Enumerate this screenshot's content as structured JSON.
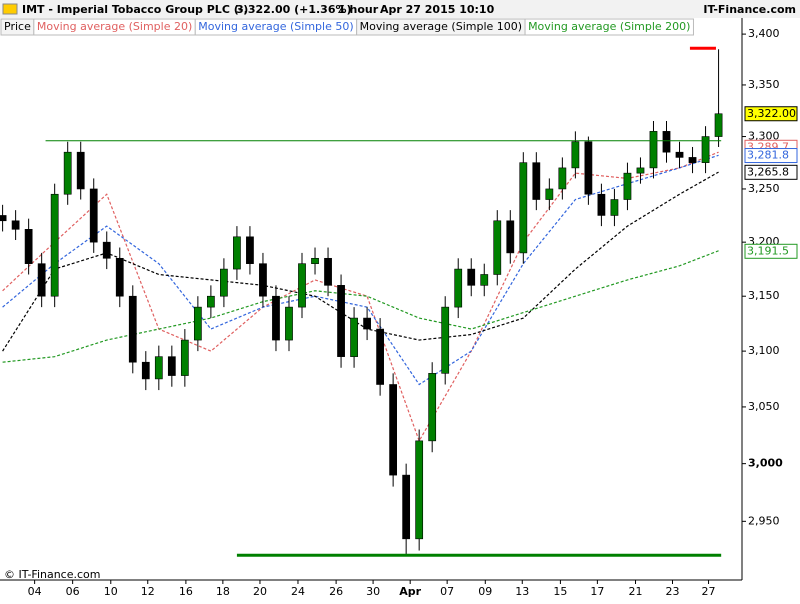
{
  "chart_data": {
    "type": "candlestick",
    "header": {
      "symbol": "IMT - Imperial Tobacco Group PLC (-)",
      "quote": "3,322.00 (+1.36%)",
      "period": "1 hour",
      "date": "Apr 27 2015 10:10",
      "site": "IT-Finance.com"
    },
    "watermark": "© IT-Finance.com",
    "price_tab": "Price",
    "log_scale": true,
    "ylim": [
      2900,
      3414
    ],
    "yticks": [
      {
        "value": 2950,
        "label": "2,950"
      },
      {
        "value": 3000,
        "label": "3,000"
      },
      {
        "value": 3050,
        "label": "3,050"
      },
      {
        "value": 3100,
        "label": "3,100"
      },
      {
        "value": 3150,
        "label": "3,150"
      },
      {
        "value": 3200,
        "label": "3,200"
      },
      {
        "value": 3250,
        "label": "3,250"
      },
      {
        "value": 3300,
        "label": "3,300"
      },
      {
        "value": 3350,
        "label": "3,350"
      },
      {
        "value": 3400,
        "label": "3,400"
      }
    ],
    "xlim": [
      -0.2,
      56.8
    ],
    "xticks": [
      {
        "value": 2.46,
        "label": "04"
      },
      {
        "value": 5.38,
        "label": "06"
      },
      {
        "value": 8.31,
        "label": "10"
      },
      {
        "value": 11.15,
        "label": "12"
      },
      {
        "value": 14.08,
        "label": "16"
      },
      {
        "value": 16.92,
        "label": "18"
      },
      {
        "value": 19.77,
        "label": "20"
      },
      {
        "value": 22.69,
        "label": "24"
      },
      {
        "value": 25.62,
        "label": "26"
      },
      {
        "value": 28.46,
        "label": "30"
      },
      {
        "value": 31.31,
        "label": "Apr"
      },
      {
        "value": 34.15,
        "label": "07"
      },
      {
        "value": 37.08,
        "label": "09"
      },
      {
        "value": 39.92,
        "label": "13"
      },
      {
        "value": 42.85,
        "label": "15"
      },
      {
        "value": 45.69,
        "label": "17"
      },
      {
        "value": 48.62,
        "label": "21"
      },
      {
        "value": 51.46,
        "label": "23"
      },
      {
        "value": 54.23,
        "label": "27"
      }
    ],
    "up_color": "#008000",
    "down_color": "#000000",
    "open": [
      3225,
      3220,
      3212,
      3180,
      3150,
      3245,
      3285,
      3250,
      3200,
      3185,
      3150,
      3090,
      3075,
      3095,
      3078,
      3110,
      3140,
      3150,
      3175,
      3205,
      3180,
      3150,
      3110,
      3140,
      3180,
      3185,
      3160,
      3095,
      3130,
      3120,
      3070,
      2990,
      2935,
      3020,
      3080,
      3140,
      3175,
      3160,
      3170,
      3220,
      3190,
      3275,
      3240,
      3250,
      3270,
      3295,
      3245,
      3225,
      3240,
      3265,
      3270,
      3305,
      3285,
      3280,
      3275,
      3300
    ],
    "high": [
      3235,
      3230,
      3222,
      3190,
      3255,
      3295,
      3295,
      3260,
      3210,
      3195,
      3160,
      3100,
      3105,
      3105,
      3120,
      3150,
      3160,
      3185,
      3215,
      3215,
      3190,
      3160,
      3150,
      3190,
      3195,
      3195,
      3170,
      3140,
      3140,
      3130,
      3080,
      3000,
      3030,
      3090,
      3150,
      3185,
      3185,
      3180,
      3230,
      3230,
      3285,
      3285,
      3260,
      3280,
      3305,
      3300,
      3255,
      3250,
      3275,
      3280,
      3315,
      3315,
      3295,
      3290,
      3310,
      3385
    ],
    "low": [
      3210,
      3202,
      3170,
      3140,
      3140,
      3235,
      3240,
      3190,
      3175,
      3140,
      3080,
      3065,
      3065,
      3068,
      3068,
      3100,
      3130,
      3140,
      3165,
      3170,
      3140,
      3100,
      3100,
      3130,
      3170,
      3150,
      3085,
      3085,
      3110,
      3060,
      2980,
      2920,
      2925,
      3010,
      3070,
      3130,
      3150,
      3150,
      3160,
      3180,
      3180,
      3230,
      3230,
      3240,
      3260,
      3235,
      3215,
      3215,
      3230,
      3255,
      3260,
      3275,
      3270,
      3265,
      3265,
      3290
    ],
    "close": [
      3220,
      3212,
      3180,
      3150,
      3245,
      3285,
      3250,
      3200,
      3185,
      3150,
      3090,
      3075,
      3095,
      3078,
      3110,
      3140,
      3150,
      3175,
      3205,
      3180,
      3150,
      3110,
      3140,
      3180,
      3185,
      3160,
      3095,
      3130,
      3120,
      3070,
      2990,
      2935,
      3020,
      3080,
      3140,
      3175,
      3160,
      3170,
      3220,
      3190,
      3275,
      3240,
      3250,
      3270,
      3295,
      3245,
      3225,
      3240,
      3265,
      3270,
      3305,
      3285,
      3280,
      3275,
      3300,
      3322
    ],
    "series": [
      {
        "name": "Moving average (Simple 20)",
        "color": "#e06060",
        "x": [
          0,
          4,
          8,
          12,
          16,
          20,
          24,
          28,
          32,
          36,
          40,
          44,
          48,
          52,
          55
        ],
        "values": [
          3155,
          3200,
          3245,
          3120,
          3100,
          3140,
          3165,
          3150,
          3020,
          3100,
          3200,
          3265,
          3260,
          3270,
          3285
        ]
      },
      {
        "name": "Moving average (Simple 50)",
        "color": "#3366dd",
        "x": [
          0,
          4,
          8,
          12,
          16,
          20,
          24,
          28,
          32,
          36,
          40,
          44,
          48,
          52,
          55
        ],
        "values": [
          3140,
          3180,
          3215,
          3180,
          3120,
          3140,
          3150,
          3140,
          3070,
          3100,
          3180,
          3240,
          3255,
          3270,
          3282
        ]
      },
      {
        "name": "Moving average (Simple 100)",
        "color": "#000000",
        "x": [
          0,
          4,
          8,
          12,
          16,
          20,
          24,
          28,
          32,
          36,
          40,
          44,
          48,
          52,
          55
        ],
        "values": [
          3100,
          3175,
          3190,
          3170,
          3165,
          3160,
          3150,
          3120,
          3110,
          3115,
          3130,
          3175,
          3215,
          3245,
          3266
        ]
      },
      {
        "name": "Moving average (Simple 200)",
        "color": "#229922",
        "x": [
          0,
          4,
          8,
          12,
          16,
          20,
          24,
          28,
          32,
          36,
          40,
          44,
          48,
          52,
          55
        ],
        "values": [
          3090,
          3095,
          3110,
          3120,
          3130,
          3145,
          3155,
          3150,
          3130,
          3120,
          3135,
          3150,
          3165,
          3178,
          3192
        ]
      }
    ],
    "price_labels": [
      {
        "value": 3322,
        "label": "3,322.00",
        "color": "#000000",
        "background": "#ffff00"
      },
      {
        "value": 3289.7,
        "label": "3,289.7",
        "color": "#e06060",
        "background": "#ffffff"
      },
      {
        "value": 3281.8,
        "label": "3,281.8",
        "color": "#3366dd",
        "background": "#ffffff"
      },
      {
        "value": 3265.8,
        "label": "3,265.8",
        "color": "#000000",
        "background": "#ffffff"
      },
      {
        "value": 3191.5,
        "label": "3,191.5",
        "color": "#229922",
        "background": "#ffffff"
      }
    ],
    "levels": [
      {
        "y": 3296,
        "x": [
          3.3,
          55.2
        ],
        "color": "#008000",
        "width": 1
      },
      {
        "y": 3386,
        "x": [
          52.8,
          54.8
        ],
        "color": "#ff0000",
        "width": 3
      },
      {
        "y": 2921,
        "x": [
          18,
          55.2
        ],
        "color": "#008000",
        "width": 3
      }
    ]
  }
}
